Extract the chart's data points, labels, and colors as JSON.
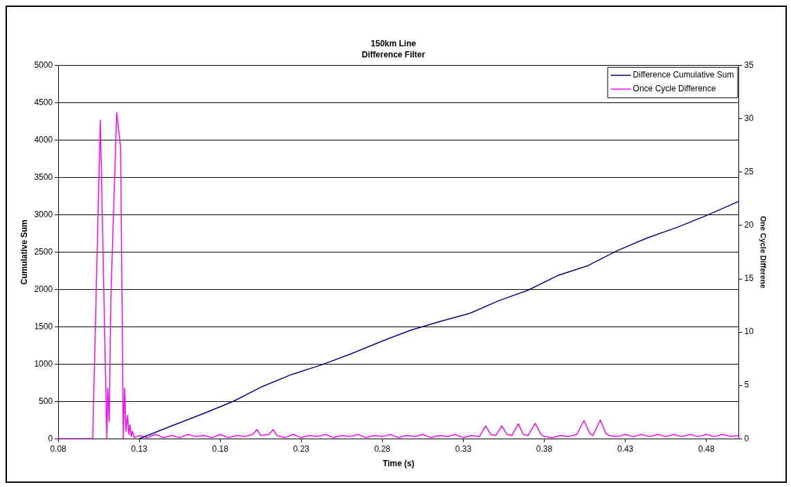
{
  "chart_data": {
    "type": "line",
    "title": "150km Line",
    "subtitle": "Difference Filter",
    "xlabel": "Time (s)",
    "ylabel": "Cumulative Sum",
    "y2label": "One Cycle Differene",
    "xlim": [
      0.08,
      0.5
    ],
    "xticks": [
      0.08,
      0.13,
      0.18,
      0.23,
      0.28,
      0.33,
      0.38,
      0.43,
      0.48
    ],
    "ylim": [
      0,
      5000
    ],
    "yticks": [
      0,
      500,
      1000,
      1500,
      2000,
      2500,
      3000,
      3500,
      4000,
      4500,
      5000
    ],
    "y2lim": [
      0,
      35
    ],
    "y2ticks": [
      0,
      5,
      10,
      15,
      20,
      25,
      30,
      35
    ],
    "grid": "y",
    "legend": "top right",
    "marker": "none",
    "line_style": "solid",
    "series": [
      {
        "name": "Difference Cumulative Sum",
        "color": "#000080",
        "x": [
          0.13,
          0.151,
          0.17,
          0.188,
          0.206,
          0.224,
          0.2426,
          0.261,
          0.279,
          0.297,
          0.3156,
          0.334,
          0.352,
          0.37,
          0.3887,
          0.407,
          0.425,
          0.4435,
          0.4617,
          0.48,
          0.5
        ],
        "values": [
          0,
          180,
          340,
          500,
          700,
          860,
          990,
          1140,
          1300,
          1450,
          1570,
          1680,
          1850,
          1990,
          2190,
          2320,
          2520,
          2690,
          2830,
          2990,
          3180
        ]
      },
      {
        "name": "Once Cycle Difference",
        "color": "#ff00ff",
        "axis": "y2",
        "x": [
          0.08,
          0.1013,
          0.106,
          0.11,
          0.1106,
          0.1115,
          0.1125,
          0.1161,
          0.1185,
          0.1202,
          0.121,
          0.1219,
          0.1228,
          0.1236,
          0.1243,
          0.1251,
          0.1258,
          0.127,
          0.13,
          0.135,
          0.14,
          0.145,
          0.15,
          0.155,
          0.16,
          0.165,
          0.17,
          0.175,
          0.18,
          0.185,
          0.19,
          0.195,
          0.2,
          0.2027,
          0.205,
          0.21,
          0.2127,
          0.215,
          0.22,
          0.225,
          0.23,
          0.235,
          0.24,
          0.245,
          0.25,
          0.255,
          0.26,
          0.265,
          0.27,
          0.275,
          0.28,
          0.285,
          0.29,
          0.295,
          0.3,
          0.305,
          0.31,
          0.315,
          0.32,
          0.325,
          0.33,
          0.335,
          0.34,
          0.3438,
          0.347,
          0.35,
          0.3538,
          0.357,
          0.36,
          0.364,
          0.367,
          0.37,
          0.3744,
          0.378,
          0.38,
          0.385,
          0.39,
          0.395,
          0.4,
          0.4045,
          0.408,
          0.41,
          0.4146,
          0.418,
          0.42,
          0.425,
          0.43,
          0.435,
          0.44,
          0.445,
          0.45,
          0.455,
          0.46,
          0.465,
          0.47,
          0.475,
          0.48,
          0.485,
          0.49,
          0.495,
          0.5
        ],
        "values": [
          0,
          0,
          29.9,
          0,
          4.75,
          1.6,
          13.1,
          30.6,
          27.4,
          0,
          4.75,
          0.7,
          2.2,
          0.4,
          1.3,
          0.2,
          0.7,
          0.1,
          0.3,
          0.1,
          0.4,
          0.1,
          0.3,
          0.1,
          0.4,
          0.2,
          0.3,
          0.1,
          0.4,
          0.1,
          0.3,
          0.2,
          0.4,
          0.85,
          0.3,
          0.4,
          0.85,
          0.3,
          0.1,
          0.4,
          0.1,
          0.3,
          0.2,
          0.4,
          0.1,
          0.3,
          0.2,
          0.4,
          0.1,
          0.3,
          0.2,
          0.4,
          0.1,
          0.3,
          0.2,
          0.4,
          0.1,
          0.3,
          0.2,
          0.4,
          0.1,
          0.3,
          0.2,
          1.2,
          0.4,
          0.3,
          1.2,
          0.4,
          0.3,
          1.4,
          0.4,
          0.3,
          1.45,
          0.4,
          0.2,
          0.1,
          0.3,
          0.2,
          0.4,
          1.7,
          0.5,
          0.3,
          1.75,
          0.5,
          0.3,
          0.2,
          0.4,
          0.2,
          0.4,
          0.2,
          0.4,
          0.2,
          0.4,
          0.2,
          0.4,
          0.2,
          0.4,
          0.2,
          0.4,
          0.2,
          0.3
        ]
      }
    ]
  }
}
